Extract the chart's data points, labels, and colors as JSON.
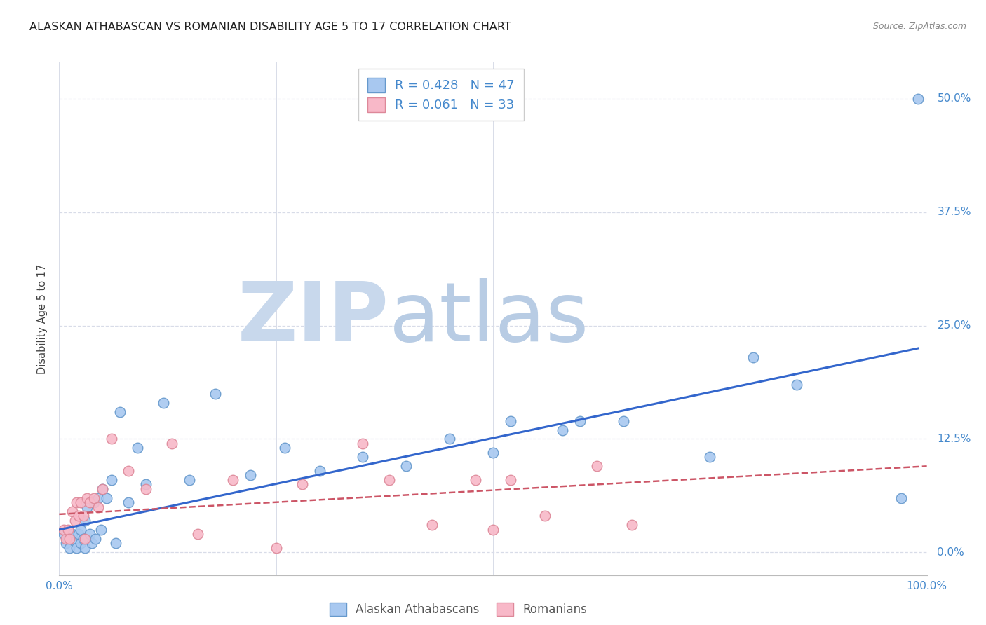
{
  "title": "ALASKAN ATHABASCAN VS ROMANIAN DISABILITY AGE 5 TO 17 CORRELATION CHART",
  "source_text": "Source: ZipAtlas.com",
  "ylabel": "Disability Age 5 to 17",
  "y_tick_labels": [
    "0.0%",
    "12.5%",
    "25.0%",
    "37.5%",
    "50.0%"
  ],
  "y_ticks": [
    0.0,
    0.125,
    0.25,
    0.375,
    0.5
  ],
  "xlim": [
    0.0,
    1.0
  ],
  "ylim": [
    -0.025,
    0.54
  ],
  "blue_R": "0.428",
  "blue_N": "47",
  "pink_R": "0.061",
  "pink_N": "33",
  "legend_label_blue": "Alaskan Athabascans",
  "legend_label_pink": "Romanians",
  "blue_scatter_color": "#a8c8f0",
  "blue_edge_color": "#6699cc",
  "pink_scatter_color": "#f8b8c8",
  "pink_edge_color": "#dd8899",
  "blue_line_color": "#3366cc",
  "pink_line_color": "#cc5566",
  "label_color": "#4488cc",
  "watermark_zip_color": "#c8d8ec",
  "watermark_atlas_color": "#b8cce4",
  "grid_color": "#d8dce8",
  "title_fontsize": 11.5,
  "blue_scatter_x": [
    0.005,
    0.008,
    0.01,
    0.012,
    0.015,
    0.018,
    0.02,
    0.022,
    0.025,
    0.025,
    0.028,
    0.03,
    0.03,
    0.032,
    0.035,
    0.038,
    0.04,
    0.042,
    0.045,
    0.048,
    0.05,
    0.055,
    0.06,
    0.065,
    0.07,
    0.08,
    0.09,
    0.1,
    0.12,
    0.15,
    0.18,
    0.22,
    0.26,
    0.3,
    0.35,
    0.4,
    0.45,
    0.5,
    0.52,
    0.58,
    0.6,
    0.65,
    0.75,
    0.8,
    0.85,
    0.97,
    0.99
  ],
  "blue_scatter_y": [
    0.02,
    0.01,
    0.015,
    0.005,
    0.02,
    0.012,
    0.005,
    0.02,
    0.025,
    0.01,
    0.015,
    0.035,
    0.005,
    0.05,
    0.02,
    0.01,
    0.055,
    0.015,
    0.06,
    0.025,
    0.07,
    0.06,
    0.08,
    0.01,
    0.155,
    0.055,
    0.115,
    0.075,
    0.165,
    0.08,
    0.175,
    0.085,
    0.115,
    0.09,
    0.105,
    0.095,
    0.125,
    0.11,
    0.145,
    0.135,
    0.145,
    0.145,
    0.105,
    0.215,
    0.185,
    0.06,
    0.5
  ],
  "pink_scatter_x": [
    0.005,
    0.008,
    0.01,
    0.012,
    0.015,
    0.018,
    0.02,
    0.022,
    0.025,
    0.028,
    0.03,
    0.032,
    0.035,
    0.04,
    0.045,
    0.05,
    0.06,
    0.08,
    0.1,
    0.13,
    0.16,
    0.2,
    0.25,
    0.28,
    0.35,
    0.38,
    0.43,
    0.48,
    0.5,
    0.52,
    0.56,
    0.62,
    0.66
  ],
  "pink_scatter_y": [
    0.025,
    0.015,
    0.025,
    0.015,
    0.045,
    0.035,
    0.055,
    0.04,
    0.055,
    0.04,
    0.015,
    0.06,
    0.055,
    0.06,
    0.05,
    0.07,
    0.125,
    0.09,
    0.07,
    0.12,
    0.02,
    0.08,
    0.005,
    0.075,
    0.12,
    0.08,
    0.03,
    0.08,
    0.025,
    0.08,
    0.04,
    0.095,
    0.03
  ],
  "blue_line_start_y": 0.025,
  "blue_line_end_y": 0.225,
  "pink_line_start_y": 0.042,
  "pink_line_end_y": 0.095,
  "blue_line_end_x": 0.99
}
